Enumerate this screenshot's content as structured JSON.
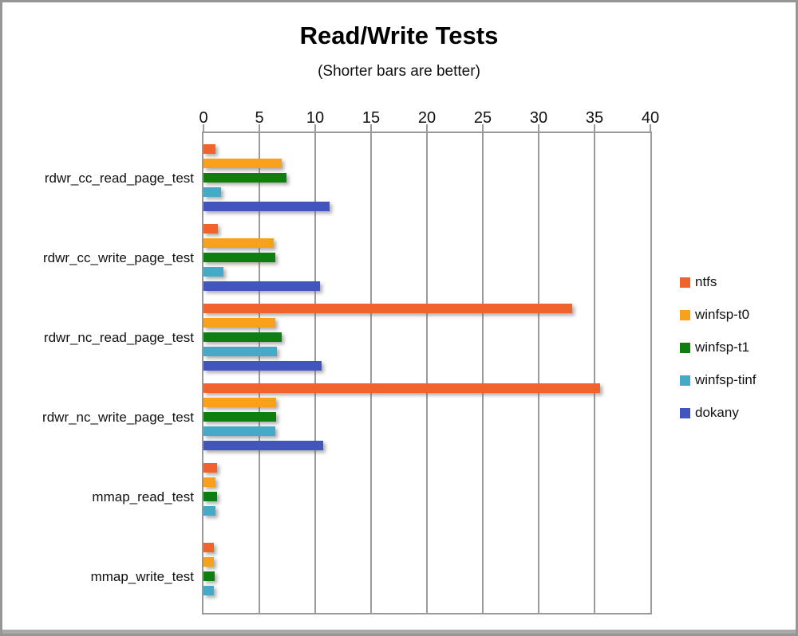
{
  "window": {
    "bottom_edge_color": "#a9a9a9",
    "border_color": "#969696"
  },
  "chart_data": {
    "type": "bar",
    "orientation": "horizontal",
    "title": "Read/Write Tests",
    "subtitle": "(Shorter bars are better)",
    "grid": true,
    "legend_position": "right",
    "categories": [
      "rdwr_cc_read_page_test",
      "rdwr_cc_write_page_test",
      "rdwr_nc_read_page_test",
      "rdwr_nc_write_page_test",
      "mmap_read_test",
      "mmap_write_test"
    ],
    "series": [
      {
        "name": "ntfs",
        "color": "#F0632C",
        "values": [
          1.1,
          1.3,
          33.0,
          35.5,
          1.2,
          0.9
        ]
      },
      {
        "name": "winfsp-t0",
        "color": "#F9A11D",
        "values": [
          7.0,
          6.3,
          6.4,
          6.5,
          1.1,
          0.9
        ]
      },
      {
        "name": "winfsp-t1",
        "color": "#0E7E0E",
        "values": [
          7.4,
          6.4,
          7.0,
          6.5,
          1.2,
          1.0
        ]
      },
      {
        "name": "winfsp-tinf",
        "color": "#45AAC7",
        "values": [
          1.6,
          1.8,
          6.6,
          6.4,
          1.1,
          0.9
        ]
      },
      {
        "name": "dokany",
        "color": "#4254BE",
        "values": [
          11.3,
          10.4,
          10.6,
          10.7,
          null,
          null
        ]
      }
    ],
    "x_axis": {
      "min": 0,
      "max": 40,
      "tick_step": 5,
      "ticks": [
        0,
        5,
        10,
        15,
        20,
        25,
        30,
        35,
        40
      ]
    }
  }
}
